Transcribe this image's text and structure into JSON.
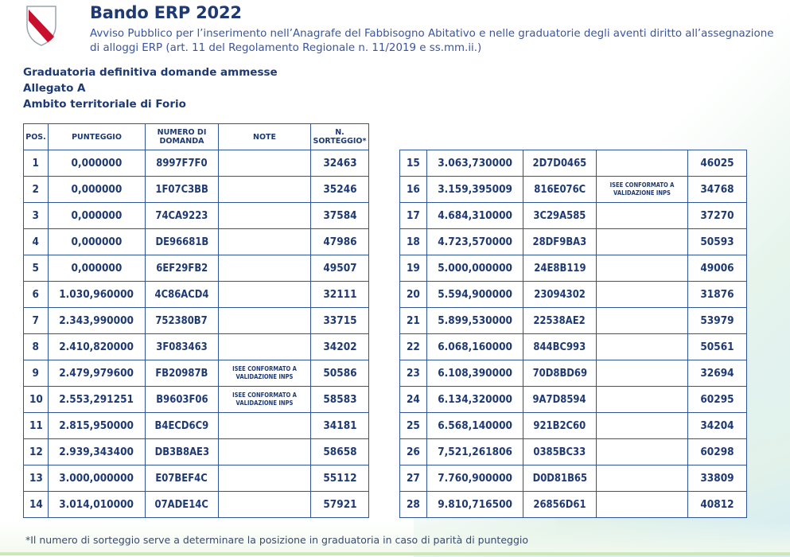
{
  "header": {
    "title": "Bando ERP 2022",
    "subtitle": "Avviso Pubblico per l’inserimento nell’Anagrafe del Fabbisogno Abitativo e nelle graduatorie degli aventi diritto all’assegnazione di alloggi ERP (art. 11 del Regolamento Regionale n. 11/2019 e ss.mm.ii.)"
  },
  "headings": {
    "line1": "Graduatoria definitiva domande ammesse",
    "line2": "Allegato A",
    "line3": "Ambito territoriale di Forio"
  },
  "columns": {
    "pos": "POS.",
    "punteggio": "PUNTEGGIO",
    "numero": "NUMERO DI DOMANDA",
    "note": "NOTE",
    "sorteggio": "N. SORTEGGIO*"
  },
  "colors": {
    "primary": "#1f3a73",
    "border": "#2f5597",
    "accent_green": "#cde7b8"
  },
  "rows_left": [
    {
      "pos": "1",
      "punteggio": "0,000000",
      "numero": "8997F7F0",
      "note": "",
      "sorteggio": "32463"
    },
    {
      "pos": "2",
      "punteggio": "0,000000",
      "numero": "1F07C3BB",
      "note": "",
      "sorteggio": "35246"
    },
    {
      "pos": "3",
      "punteggio": "0,000000",
      "numero": "74CA9223",
      "note": "",
      "sorteggio": "37584"
    },
    {
      "pos": "4",
      "punteggio": "0,000000",
      "numero": "DE96681B",
      "note": "",
      "sorteggio": "47986"
    },
    {
      "pos": "5",
      "punteggio": "0,000000",
      "numero": "6EF29FB2",
      "note": "",
      "sorteggio": "49507"
    },
    {
      "pos": "6",
      "punteggio": "1.030,960000",
      "numero": "4C86ACD4",
      "note": "",
      "sorteggio": "32111"
    },
    {
      "pos": "7",
      "punteggio": "2.343,990000",
      "numero": "752380B7",
      "note": "",
      "sorteggio": "33715"
    },
    {
      "pos": "8",
      "punteggio": "2.410,820000",
      "numero": "3F083463",
      "note": "",
      "sorteggio": "34202"
    },
    {
      "pos": "9",
      "punteggio": "2.479,979600",
      "numero": "FB20987B",
      "note": "ISEE CONFORMATO A VALIDAZIONE INPS",
      "sorteggio": "50586"
    },
    {
      "pos": "10",
      "punteggio": "2.553,291251",
      "numero": "B9603F06",
      "note": "ISEE CONFORMATO A VALIDAZIONE INPS",
      "sorteggio": "58583"
    },
    {
      "pos": "11",
      "punteggio": "2.815,950000",
      "numero": "B4ECD6C9",
      "note": "",
      "sorteggio": "34181"
    },
    {
      "pos": "12",
      "punteggio": "2.939,343400",
      "numero": "DB3B8AE3",
      "note": "",
      "sorteggio": "58658"
    },
    {
      "pos": "13",
      "punteggio": "3.000,000000",
      "numero": "E07BEF4C",
      "note": "",
      "sorteggio": "55112"
    },
    {
      "pos": "14",
      "punteggio": "3.014,010000",
      "numero": "07ADE14C",
      "note": "",
      "sorteggio": "57921"
    }
  ],
  "rows_right": [
    {
      "pos": "15",
      "punteggio": "3.063,730000",
      "numero": "2D7D0465",
      "note": "",
      "sorteggio": "46025"
    },
    {
      "pos": "16",
      "punteggio": "3.159,395009",
      "numero": "816E076C",
      "note": "ISEE CONFORMATO A VALIDAZIONE INPS",
      "sorteggio": "34768"
    },
    {
      "pos": "17",
      "punteggio": "4.684,310000",
      "numero": "3C29A585",
      "note": "",
      "sorteggio": "37270"
    },
    {
      "pos": "18",
      "punteggio": "4.723,570000",
      "numero": "28DF9BA3",
      "note": "",
      "sorteggio": "50593"
    },
    {
      "pos": "19",
      "punteggio": "5.000,000000",
      "numero": "24E8B119",
      "note": "",
      "sorteggio": "49006"
    },
    {
      "pos": "20",
      "punteggio": "5.594,900000",
      "numero": "23094302",
      "note": "",
      "sorteggio": "31876"
    },
    {
      "pos": "21",
      "punteggio": "5.899,530000",
      "numero": "22538AE2",
      "note": "",
      "sorteggio": "53979"
    },
    {
      "pos": "22",
      "punteggio": "6.068,160000",
      "numero": "844BC993",
      "note": "",
      "sorteggio": "50561"
    },
    {
      "pos": "23",
      "punteggio": "6.108,390000",
      "numero": "70D8BD69",
      "note": "",
      "sorteggio": "32694"
    },
    {
      "pos": "24",
      "punteggio": "6.134,320000",
      "numero": "9A7D8594",
      "note": "",
      "sorteggio": "60295"
    },
    {
      "pos": "25",
      "punteggio": "6.568,140000",
      "numero": "921B2C60",
      "note": "",
      "sorteggio": "34204"
    },
    {
      "pos": "26",
      "punteggio": "7,521,261806",
      "numero": "0385BC33",
      "note": "",
      "sorteggio": "60298"
    },
    {
      "pos": "27",
      "punteggio": "7.760,900000",
      "numero": "D0D81B65",
      "note": "",
      "sorteggio": "33809"
    },
    {
      "pos": "28",
      "punteggio": "9.810,716500",
      "numero": "26856D61",
      "note": "",
      "sorteggio": "40812"
    }
  ],
  "footnote": "*Il numero di sorteggio serve a determinare la posizione in graduatoria in caso di parità di punteggio"
}
